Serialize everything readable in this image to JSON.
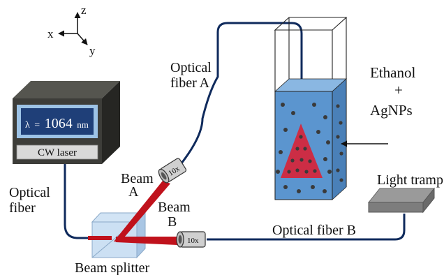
{
  "axes": {
    "z": "z",
    "x": "x",
    "y": "y"
  },
  "laser": {
    "wavelength_symbol": "λ",
    "wavelength_eq": "=",
    "wavelength_value": "1064",
    "wavelength_unit": "nm",
    "label": "CW laser"
  },
  "labels": {
    "optical_fiber_line1": "Optical",
    "optical_fiber_line2": "fiber",
    "fiber_a_line1": "Optical",
    "fiber_a_line2": "fiber A",
    "fiber_b": "Optical fiber B",
    "beam_a_line1": "Beam",
    "beam_a_line2": "A",
    "beam_b_line1": "Beam",
    "beam_b_line2": "B",
    "beam_splitter": "Beam splitter",
    "light_trap": "Light tramp",
    "ethanol": "Ethanol",
    "plus": "+",
    "agnps": "AgNPs",
    "obj_a": "10x",
    "obj_b": "10x"
  },
  "colors": {
    "fiber": "#0f2a5c",
    "beam": "#c0121c",
    "liquid": "#5b95cf",
    "laser_body": "#3a3a36",
    "lcd": "#1f3f78",
    "cone": "#d6243a"
  }
}
